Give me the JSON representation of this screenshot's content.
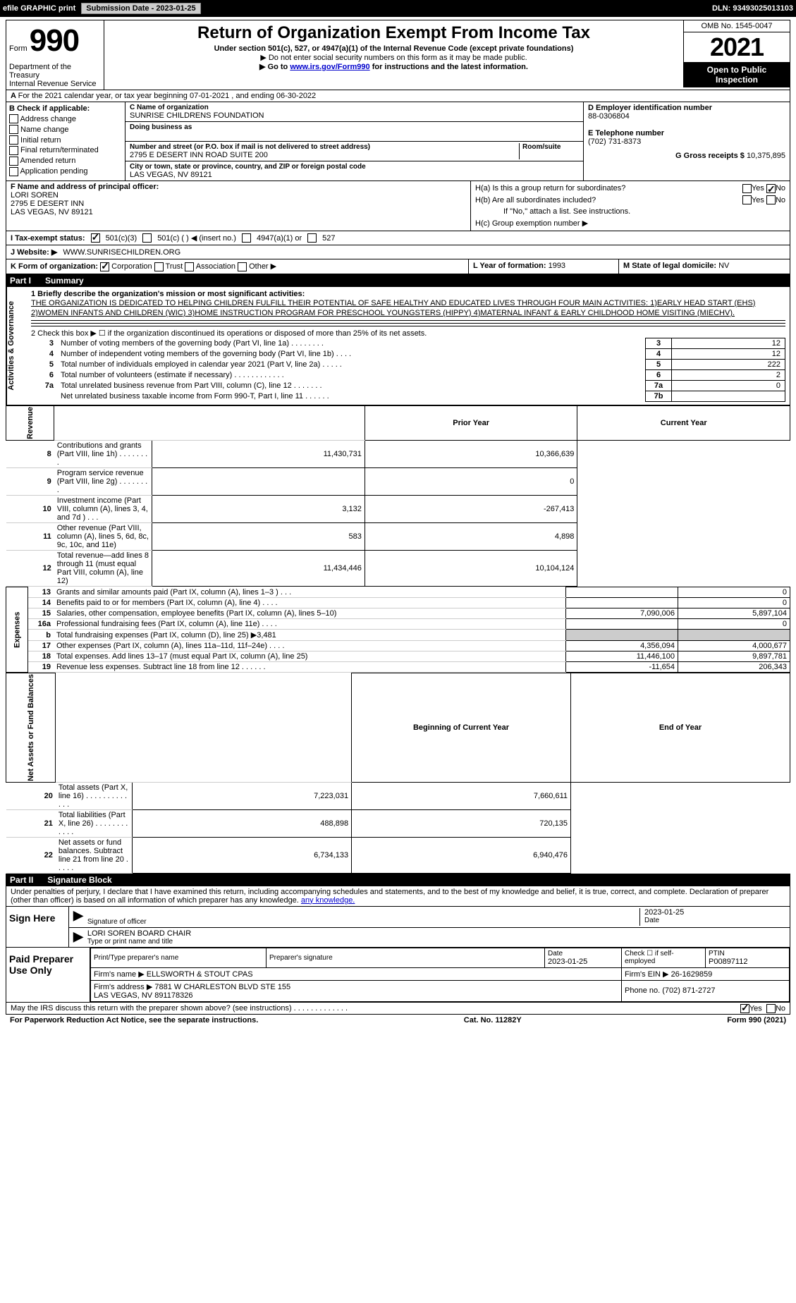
{
  "topbar": {
    "efile": "efile GRAPHIC print",
    "submission_label": "Submission Date - 2023-01-25",
    "dln": "DLN: 93493025013103"
  },
  "header": {
    "form_word": "Form",
    "form_num": "990",
    "title": "Return of Organization Exempt From Income Tax",
    "sub1": "Under section 501(c), 527, or 4947(a)(1) of the Internal Revenue Code (except private foundations)",
    "sub2": "▶ Do not enter social security numbers on this form as it may be made public.",
    "sub3_pre": "▶ Go to ",
    "sub3_link": "www.irs.gov/Form990",
    "sub3_post": " for instructions and the latest information.",
    "omb": "OMB No. 1545-0047",
    "year": "2021",
    "open": "Open to Public Inspection",
    "dept": "Department of the Treasury\nInternal Revenue Service"
  },
  "lineA": "For the 2021 calendar year, or tax year beginning 07-01-2021    , and ending 06-30-2022",
  "boxB": {
    "header": "B Check if applicable:",
    "items": [
      "Address change",
      "Name change",
      "Initial return",
      "Final return/terminated",
      "Amended return",
      "Application pending"
    ]
  },
  "boxC": {
    "name_label": "C Name of organization",
    "name": "SUNRISE CHILDRENS FOUNDATION",
    "dba_label": "Doing business as",
    "street_label": "Number and street (or P.O. box if mail is not delivered to street address)",
    "room_label": "Room/suite",
    "street": "2795 E DESERT INN ROAD SUITE 200",
    "city_label": "City or town, state or province, country, and ZIP or foreign postal code",
    "city": "LAS VEGAS, NV  89121"
  },
  "boxD": {
    "label": "D Employer identification number",
    "value": "88-0306804"
  },
  "boxE": {
    "label": "E Telephone number",
    "value": "(702) 731-8373"
  },
  "boxG": {
    "label": "G Gross receipts $",
    "value": "10,375,895"
  },
  "boxF": {
    "label": "F  Name and address of principal officer:",
    "name": "LORI SOREN",
    "addr1": "2795 E DESERT INN",
    "addr2": "LAS VEGAS, NV  89121"
  },
  "boxH": {
    "a_q": "H(a)  Is this a group return for subordinates?",
    "a_yes": "Yes",
    "a_no": "No",
    "b_q": "H(b)  Are all subordinates included?",
    "b_note": "If \"No,\" attach a list. See instructions.",
    "c_q": "H(c)  Group exemption number ▶"
  },
  "taxI": {
    "label": "I   Tax-exempt status:",
    "opt1": "501(c)(3)",
    "opt2": "501(c) (    ) ◀ (insert no.)",
    "opt3": "4947(a)(1) or",
    "opt4": "527"
  },
  "webJ": {
    "label": "J   Website: ▶",
    "value": "WWW.SUNRISECHILDREN.ORG"
  },
  "lineK": {
    "label": "K Form of organization:",
    "opts": [
      "Corporation",
      "Trust",
      "Association",
      "Other ▶"
    ]
  },
  "lineL": {
    "label": "L Year of formation:",
    "value": "1993"
  },
  "lineM": {
    "label": "M State of legal domicile:",
    "value": "NV"
  },
  "part1": {
    "part": "Part I",
    "title": "Summary"
  },
  "summary": {
    "side_ag": "Activities & Governance",
    "side_rev": "Revenue",
    "side_exp": "Expenses",
    "side_net": "Net Assets or Fund Balances",
    "line1_label": "1  Briefly describe the organization's mission or most significant activities:",
    "line1_text": "THE ORGANIZATION IS DEDICATED TO HELPING CHILDREN FULFILL THEIR POTENTIAL OF SAFE HEALTHY AND EDUCATED LIVES THROUGH FOUR MAIN ACTIVITIES: 1)EARLY HEAD START (EHS) 2)WOMEN INFANTS AND CHILDREN (WIC) 3)HOME INSTRUCTION PROGRAM FOR PRESCHOOL YOUNGSTERS (HIPPY) 4)MATERNAL INFANT & EARLY CHILDHOOD HOME VISITING (MIECHV).",
    "line2": "2   Check this box ▶ ☐  if the organization discontinued its operations or disposed of more than 25% of its net assets.",
    "rows_ag": [
      {
        "n": "3",
        "d": "Number of voting members of the governing body (Part VI, line 1a)   .    .    .    .    .    .    .    .",
        "box": "3",
        "v": "12"
      },
      {
        "n": "4",
        "d": "Number of independent voting members of the governing body (Part VI, line 1b)   .    .    .    .",
        "box": "4",
        "v": "12"
      },
      {
        "n": "5",
        "d": "Total number of individuals employed in calendar year 2021 (Part V, line 2a)   .    .    .    .    .",
        "box": "5",
        "v": "222"
      },
      {
        "n": "6",
        "d": "Total number of volunteers (estimate if necessary)    .    .    .    .    .    .    .    .    .    .    .    .",
        "box": "6",
        "v": "2"
      },
      {
        "n": "7a",
        "d": "Total unrelated business revenue from Part VIII, column (C), line 12   .    .    .    .    .    .    .",
        "box": "7a",
        "v": "0"
      },
      {
        "n": "",
        "d": "Net unrelated business taxable income from Form 990-T, Part I, line 11   .    .    .    .    .    .",
        "box": "7b",
        "v": ""
      }
    ],
    "header_py": "Prior Year",
    "header_cy": "Current Year",
    "rows_rev": [
      {
        "n": "8",
        "d": "Contributions and grants (Part VIII, line 1h)   .    .    .    .    .    .    .    .",
        "py": "11,430,731",
        "cy": "10,366,639"
      },
      {
        "n": "9",
        "d": "Program service revenue (Part VIII, line 2g)   .    .    .    .    .    .    .    .",
        "py": "",
        "cy": "0"
      },
      {
        "n": "10",
        "d": "Investment income (Part VIII, column (A), lines 3, 4, and 7d )   .    .    .",
        "py": "3,132",
        "cy": "-267,413"
      },
      {
        "n": "11",
        "d": "Other revenue (Part VIII, column (A), lines 5, 6d, 8c, 9c, 10c, and 11e)",
        "py": "583",
        "cy": "4,898"
      },
      {
        "n": "12",
        "d": "Total revenue—add lines 8 through 11 (must equal Part VIII, column (A), line 12)",
        "py": "11,434,446",
        "cy": "10,104,124"
      }
    ],
    "rows_exp": [
      {
        "n": "13",
        "d": "Grants and similar amounts paid (Part IX, column (A), lines 1–3 )   .    .    .",
        "py": "",
        "cy": "0"
      },
      {
        "n": "14",
        "d": "Benefits paid to or for members (Part IX, column (A), line 4)   .    .    .    .",
        "py": "",
        "cy": "0"
      },
      {
        "n": "15",
        "d": "Salaries, other compensation, employee benefits (Part IX, column (A), lines 5–10)",
        "py": "7,090,006",
        "cy": "5,897,104"
      },
      {
        "n": "16a",
        "d": "Professional fundraising fees (Part IX, column (A), line 11e)   .    .    .    .",
        "py": "",
        "cy": "0"
      },
      {
        "n": "b",
        "d": "Total fundraising expenses (Part IX, column (D), line 25) ▶3,481",
        "py": "shaded",
        "cy": "shaded"
      },
      {
        "n": "17",
        "d": "Other expenses (Part IX, column (A), lines 11a–11d, 11f–24e)   .    .    .    .",
        "py": "4,356,094",
        "cy": "4,000,677"
      },
      {
        "n": "18",
        "d": "Total expenses. Add lines 13–17 (must equal Part IX, column (A), line 25)",
        "py": "11,446,100",
        "cy": "9,897,781"
      },
      {
        "n": "19",
        "d": "Revenue less expenses. Subtract line 18 from line 12   .    .    .    .    .    .",
        "py": "-11,654",
        "cy": "206,343"
      }
    ],
    "header_bcy": "Beginning of Current Year",
    "header_eoy": "End of Year",
    "rows_net": [
      {
        "n": "20",
        "d": "Total assets (Part X, line 16)   .    .    .    .    .    .    .    .    .    .    .    .    .",
        "py": "7,223,031",
        "cy": "7,660,611"
      },
      {
        "n": "21",
        "d": "Total liabilities (Part X, line 26)   .    .    .    .    .    .    .    .    .    .    .    .",
        "py": "488,898",
        "cy": "720,135"
      },
      {
        "n": "22",
        "d": "Net assets or fund balances. Subtract line 21 from line 20   .    .    .    .    .",
        "py": "6,734,133",
        "cy": "6,940,476"
      }
    ]
  },
  "part2": {
    "part": "Part II",
    "title": "Signature Block"
  },
  "penalties": "Under penalties of perjury, I declare that I have examined this return, including accompanying schedules and statements, and to the best of my knowledge and belief, it is true, correct, and complete. Declaration of preparer (other than officer) is based on all information of which preparer has any knowledge.",
  "sign": {
    "label": "Sign Here",
    "sig_officer": "Signature of officer",
    "date_label": "Date",
    "date": "2023-01-25",
    "name": "LORI SOREN  BOARD CHAIR",
    "name_label": "Type or print name and title"
  },
  "paid": {
    "label": "Paid Preparer Use Only",
    "h1": "Print/Type preparer's name",
    "h2": "Preparer's signature",
    "h3": "Date",
    "h3v": "2023-01-25",
    "h4": "Check ☐ if self-employed",
    "h5": "PTIN",
    "h5v": "P00897112",
    "firm_label": "Firm's name    ▶",
    "firm": "ELLSWORTH & STOUT CPAS",
    "ein_label": "Firm's EIN ▶",
    "ein": "26-1629859",
    "addr_label": "Firm's address ▶",
    "addr": "7881 W CHARLESTON BLVD STE 155\nLAS VEGAS, NV  891178326",
    "phone_label": "Phone no.",
    "phone": "(702) 871-2727"
  },
  "discuss": {
    "q": "May the IRS discuss this return with the preparer shown above? (see instructions)    .    .    .    .    .    .    .    .    .    .    .    .    .",
    "yes": "Yes",
    "no": "No"
  },
  "footer": {
    "l": "For Paperwork Reduction Act Notice, see the separate instructions.",
    "m": "Cat. No. 11282Y",
    "r": "Form 990 (2021)"
  }
}
